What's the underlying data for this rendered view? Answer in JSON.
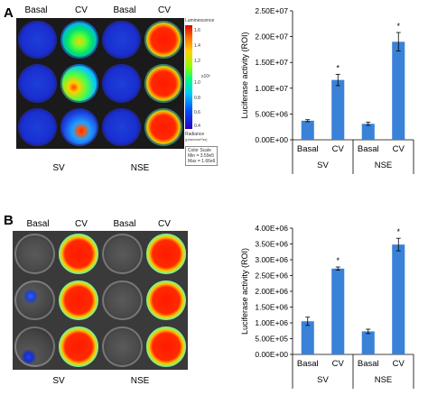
{
  "panels": [
    {
      "label": "A",
      "image": {
        "column_labels": [
          "Basal",
          "CV",
          "Basal",
          "CV"
        ],
        "group_labels": [
          "SV",
          "NSE"
        ],
        "colorbar": {
          "title": "Luminescence",
          "ticks": [
            "1.6",
            "1.4",
            "1.2",
            "1.0",
            "0.8",
            "0.6",
            "0.4"
          ],
          "exponent": "x10⁶",
          "unit_label": "Radiance",
          "unit_sub": "(p/sec/cm²/sr)",
          "color_scale_lines": [
            "Color Scale",
            "Min = 3.59e5",
            "Max = 1.66e6"
          ]
        },
        "wells": [
          [
            "blue",
            "green",
            "blue",
            "red"
          ],
          [
            "blue",
            "greenmix",
            "blue",
            "red"
          ],
          [
            "blue",
            "redspot",
            "blue",
            "red"
          ]
        ]
      },
      "chart_data": {
        "type": "bar",
        "ylabel": "Luciferase activity (ROI)",
        "ylim": [
          0,
          25000000
        ],
        "yticks": [
          0,
          5000000,
          10000000,
          15000000,
          20000000,
          25000000
        ],
        "ytick_labels": [
          "0.00E+00",
          "5.00E+06",
          "1.00E+07",
          "1.50E+07",
          "2.00E+07",
          "2.50E+07"
        ],
        "categories": [
          "Basal",
          "CV",
          "Basal",
          "CV"
        ],
        "groups": [
          "SV",
          "NSE"
        ],
        "values": [
          3700000,
          11600000,
          3100000,
          19000000
        ],
        "errors": [
          200000,
          1100000,
          300000,
          1800000
        ],
        "annotations": [
          "",
          "*",
          "",
          "*"
        ],
        "bar_color": "#3a82d8"
      }
    },
    {
      "label": "B",
      "image": {
        "column_labels": [
          "Basal",
          "CV",
          "Basal",
          "CV"
        ],
        "group_labels": [
          "SV",
          "NSE"
        ],
        "wells": [
          [
            "none",
            "red",
            "none",
            "red"
          ],
          [
            "small",
            "red",
            "none",
            "red"
          ],
          [
            "speck",
            "red",
            "none",
            "red"
          ]
        ]
      },
      "chart_data": {
        "type": "bar",
        "ylabel": "Luciferase activity (ROI)",
        "ylim": [
          0,
          4000000
        ],
        "yticks": [
          0,
          500000,
          1000000,
          1500000,
          2000000,
          2500000,
          3000000,
          3500000,
          4000000
        ],
        "ytick_labels": [
          "0.00E+00",
          "5.00E+05",
          "1.00E+06",
          "1.50E+06",
          "2.00E+06",
          "2.50E+06",
          "3.00E+06",
          "3.50E+06",
          "4.00E+06"
        ],
        "categories": [
          "Basal",
          "CV",
          "Basal",
          "CV"
        ],
        "groups": [
          "SV",
          "NSE"
        ],
        "values": [
          1050000,
          2720000,
          730000,
          3480000
        ],
        "errors": [
          130000,
          50000,
          70000,
          200000
        ],
        "annotations": [
          "",
          "*",
          "",
          "*"
        ],
        "bar_color": "#3a82d8"
      }
    }
  ]
}
